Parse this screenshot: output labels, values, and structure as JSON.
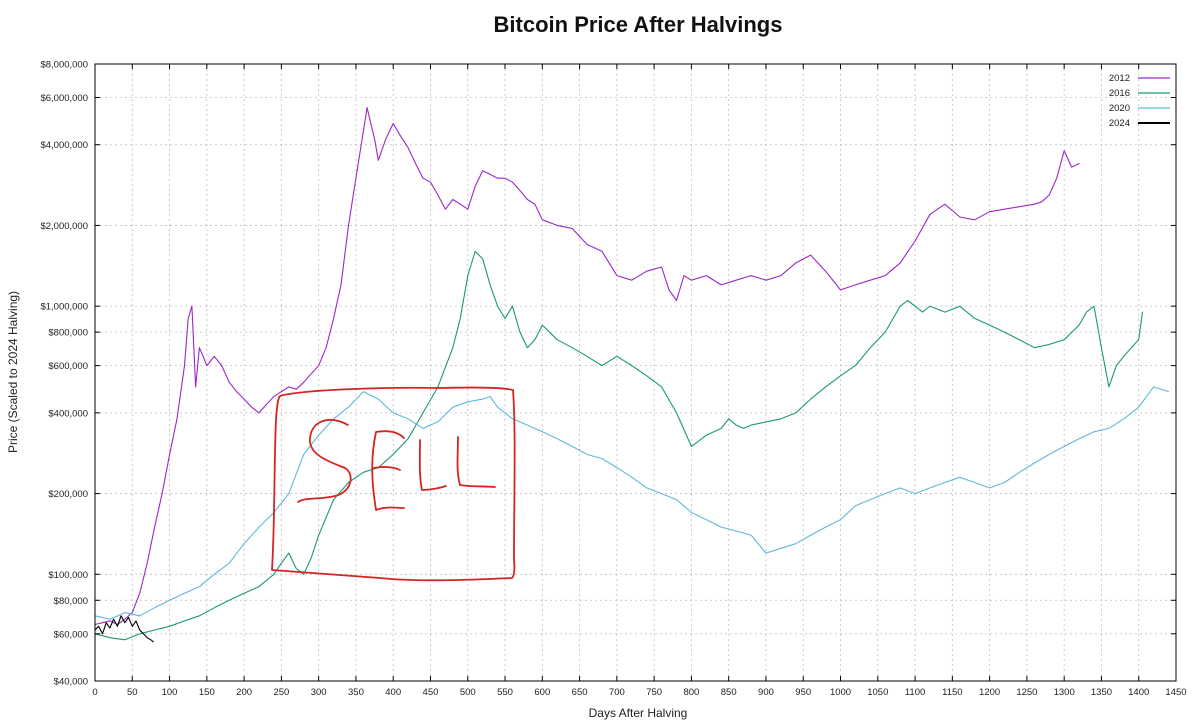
{
  "chart_data": {
    "type": "line",
    "title": "Bitcoin Price After Halvings",
    "xlabel": "Days After Halving",
    "ylabel": "Price (Scaled to 2024 Halving)",
    "xlim": [
      0,
      1450
    ],
    "ylim": [
      40000,
      8000000
    ],
    "yscale": "log",
    "grid": true,
    "legend_position": "top-right",
    "x_ticks": [
      0,
      50,
      100,
      150,
      200,
      250,
      300,
      350,
      400,
      450,
      500,
      550,
      600,
      650,
      700,
      750,
      800,
      850,
      900,
      950,
      1000,
      1050,
      1100,
      1150,
      1200,
      1250,
      1300,
      1350,
      1400,
      1450
    ],
    "x_tick_labels": [
      "0",
      "50",
      "100",
      "150",
      "200",
      "250",
      "300",
      "350",
      "400",
      "450",
      "500",
      "550",
      "600",
      "650",
      "700",
      "750",
      "800",
      "850",
      "900",
      "950",
      "1000",
      "1050",
      "1100",
      "1150",
      "1200",
      "1250",
      "1300",
      "1350",
      "1400",
      "1450"
    ],
    "y_ticks": [
      40000,
      60000,
      80000,
      100000,
      200000,
      400000,
      600000,
      800000,
      1000000,
      2000000,
      4000000,
      6000000,
      8000000
    ],
    "y_tick_labels": [
      "$40,000",
      "$60,000",
      "$80,000",
      "$100,000",
      "$200,000",
      "$400,000",
      "$600,000",
      "$800,000",
      "$1,000,000",
      "$2,000,000",
      "$4,000,000",
      "$6,000,000",
      "$8,000,000"
    ],
    "series": [
      {
        "name": "2012",
        "color": "#9c27c8",
        "x": [
          0,
          10,
          20,
          30,
          40,
          50,
          60,
          70,
          80,
          90,
          100,
          110,
          120,
          125,
          130,
          135,
          140,
          145,
          150,
          160,
          170,
          180,
          190,
          200,
          210,
          220,
          230,
          240,
          250,
          260,
          270,
          280,
          290,
          300,
          310,
          320,
          330,
          340,
          350,
          360,
          365,
          370,
          375,
          380,
          390,
          400,
          410,
          420,
          430,
          440,
          450,
          460,
          470,
          480,
          490,
          500,
          510,
          520,
          530,
          540,
          550,
          560,
          570,
          580,
          590,
          600,
          620,
          640,
          660,
          680,
          700,
          720,
          740,
          760,
          770,
          780,
          790,
          800,
          820,
          840,
          860,
          880,
          900,
          920,
          940,
          960,
          980,
          1000,
          1020,
          1040,
          1060,
          1080,
          1100,
          1120,
          1140,
          1160,
          1180,
          1200,
          1220,
          1240,
          1260,
          1270,
          1280,
          1290,
          1300,
          1310,
          1320
        ],
        "y": [
          65000,
          66000,
          67000,
          65000,
          68000,
          72000,
          85000,
          110000,
          150000,
          200000,
          280000,
          380000,
          600000,
          900000,
          1000000,
          500000,
          700000,
          650000,
          600000,
          650000,
          600000,
          520000,
          480000,
          450000,
          420000,
          400000,
          430000,
          460000,
          480000,
          500000,
          490000,
          520000,
          560000,
          600000,
          700000,
          900000,
          1200000,
          2000000,
          3000000,
          4500000,
          5500000,
          4800000,
          4200000,
          3500000,
          4200000,
          4800000,
          4300000,
          3900000,
          3400000,
          3000000,
          2900000,
          2600000,
          2300000,
          2500000,
          2400000,
          2300000,
          2800000,
          3200000,
          3100000,
          3000000,
          3000000,
          2900000,
          2700000,
          2500000,
          2400000,
          2100000,
          2000000,
          1950000,
          1700000,
          1600000,
          1300000,
          1250000,
          1350000,
          1400000,
          1150000,
          1050000,
          1300000,
          1250000,
          1300000,
          1200000,
          1250000,
          1300000,
          1250000,
          1300000,
          1450000,
          1550000,
          1350000,
          1150000,
          1200000,
          1250000,
          1300000,
          1450000,
          1750000,
          2200000,
          2400000,
          2150000,
          2100000,
          2250000,
          2300000,
          2350000,
          2400000,
          2450000,
          2600000,
          3000000,
          3800000,
          3300000,
          3400000
        ]
      },
      {
        "name": "2016",
        "color": "#1a9a6c",
        "x": [
          0,
          20,
          40,
          60,
          80,
          100,
          120,
          140,
          160,
          180,
          200,
          220,
          240,
          250,
          260,
          270,
          280,
          290,
          300,
          320,
          340,
          360,
          380,
          400,
          420,
          440,
          460,
          480,
          490,
          500,
          510,
          520,
          530,
          540,
          550,
          560,
          570,
          580,
          590,
          600,
          620,
          640,
          660,
          680,
          700,
          720,
          740,
          760,
          780,
          800,
          820,
          840,
          850,
          860,
          870,
          880,
          900,
          920,
          940,
          960,
          980,
          1000,
          1020,
          1040,
          1060,
          1080,
          1090,
          1100,
          1110,
          1120,
          1140,
          1160,
          1180,
          1200,
          1220,
          1240,
          1260,
          1280,
          1300,
          1320,
          1330,
          1340,
          1350,
          1360,
          1370,
          1380,
          1390,
          1400,
          1405
        ],
        "y": [
          60000,
          58000,
          57000,
          60000,
          62000,
          64000,
          67000,
          70000,
          75000,
          80000,
          85000,
          90000,
          100000,
          110000,
          120000,
          105000,
          100000,
          115000,
          140000,
          190000,
          220000,
          240000,
          250000,
          280000,
          320000,
          400000,
          500000,
          700000,
          900000,
          1300000,
          1600000,
          1500000,
          1200000,
          1000000,
          900000,
          1000000,
          800000,
          700000,
          750000,
          850000,
          750000,
          700000,
          650000,
          600000,
          650000,
          600000,
          550000,
          500000,
          400000,
          300000,
          330000,
          350000,
          380000,
          360000,
          350000,
          360000,
          370000,
          380000,
          400000,
          450000,
          500000,
          550000,
          600000,
          700000,
          800000,
          1000000,
          1050000,
          1000000,
          950000,
          1000000,
          950000,
          1000000,
          900000,
          850000,
          800000,
          750000,
          700000,
          720000,
          750000,
          850000,
          950000,
          1000000,
          700000,
          500000,
          600000,
          650000,
          700000,
          750000,
          950000
        ]
      },
      {
        "name": "2020",
        "color": "#5fb9d9",
        "x": [
          0,
          20,
          40,
          60,
          80,
          100,
          120,
          140,
          160,
          180,
          200,
          220,
          240,
          260,
          280,
          300,
          320,
          340,
          360,
          380,
          400,
          420,
          440,
          460,
          480,
          500,
          520,
          530,
          540,
          550,
          560,
          580,
          600,
          620,
          640,
          660,
          680,
          700,
          720,
          740,
          760,
          780,
          800,
          820,
          840,
          860,
          880,
          900,
          920,
          940,
          960,
          980,
          1000,
          1020,
          1040,
          1060,
          1080,
          1100,
          1120,
          1140,
          1160,
          1180,
          1200,
          1220,
          1240,
          1260,
          1280,
          1300,
          1320,
          1340,
          1360,
          1380,
          1400,
          1420,
          1440
        ],
        "y": [
          70000,
          68000,
          72000,
          70000,
          75000,
          80000,
          85000,
          90000,
          100000,
          110000,
          130000,
          150000,
          170000,
          200000,
          280000,
          330000,
          380000,
          420000,
          480000,
          450000,
          400000,
          380000,
          350000,
          370000,
          420000,
          440000,
          450000,
          460000,
          420000,
          400000,
          380000,
          360000,
          340000,
          320000,
          300000,
          280000,
          270000,
          250000,
          230000,
          210000,
          200000,
          190000,
          170000,
          160000,
          150000,
          145000,
          140000,
          120000,
          125000,
          130000,
          140000,
          150000,
          160000,
          180000,
          190000,
          200000,
          210000,
          200000,
          210000,
          220000,
          230000,
          220000,
          210000,
          220000,
          240000,
          260000,
          280000,
          300000,
          320000,
          340000,
          350000,
          380000,
          420000,
          500000,
          480000
        ]
      },
      {
        "name": "2024",
        "color": "#000000",
        "x": [
          0,
          5,
          10,
          15,
          20,
          25,
          30,
          35,
          40,
          45,
          50,
          55,
          60,
          65,
          70,
          75,
          78
        ],
        "y": [
          62000,
          64000,
          60000,
          66000,
          63000,
          68000,
          64000,
          70000,
          66000,
          69000,
          64000,
          67000,
          62000,
          60000,
          58000,
          57000,
          56000
        ]
      }
    ],
    "annotations": [
      {
        "type": "handwritten-box",
        "color": "#d42424",
        "x_range": [
          250,
          560
        ],
        "y_range": [
          95000,
          500000
        ]
      },
      {
        "type": "handwritten-text",
        "text": "SELL",
        "color": "#d42424"
      }
    ]
  }
}
